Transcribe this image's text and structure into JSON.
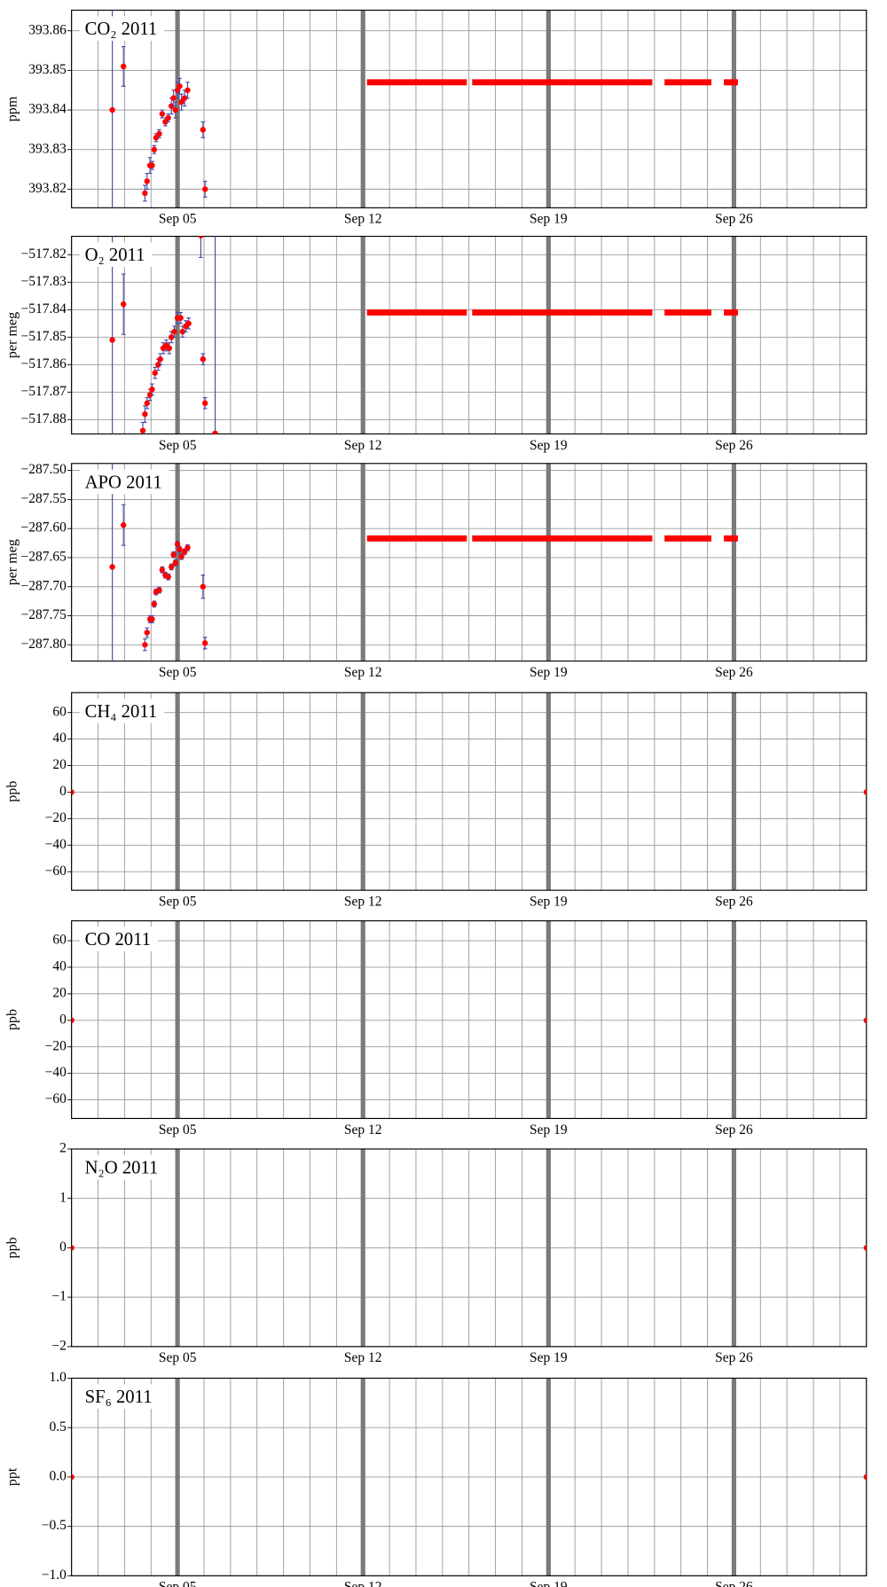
{
  "chart_data": [
    {
      "type": "scatter",
      "title": "CO₂ 2011",
      "ylabel": "ppm",
      "xlim": [
        1,
        31
      ],
      "ylim": [
        393.8153,
        393.8652
      ],
      "xticks": [
        {
          "value": 5,
          "label": "Sep 05"
        },
        {
          "value": 12,
          "label": "Sep 12"
        },
        {
          "value": 19,
          "label": "Sep 19"
        },
        {
          "value": 26,
          "label": "Sep 26"
        }
      ],
      "yticks": [
        393.82,
        393.83,
        393.84,
        393.85,
        393.86
      ],
      "grid": true,
      "series": [
        {
          "type": "scatter",
          "color": "#ff0000",
          "error_color": "#4a4aa8",
          "x": [
            2.54,
            2.96,
            3.77,
            3.85,
            3.96,
            4.04,
            4.12,
            4.19,
            4.31,
            4.42,
            4.54,
            4.65,
            4.77,
            4.85,
            4.92,
            5.0,
            5.08,
            5.15,
            5.27,
            5.38,
            5.96,
            6.04
          ],
          "values": [
            393.84,
            393.851,
            393.819,
            393.822,
            393.826,
            393.826,
            393.83,
            393.833,
            393.834,
            393.839,
            393.837,
            393.838,
            393.841,
            393.843,
            393.84,
            393.845,
            393.846,
            393.842,
            393.843,
            393.845,
            393.835,
            393.82
          ],
          "errors": [
            0.05,
            0.005,
            0.002,
            0.002,
            0.002,
            0.001,
            0.001,
            0.001,
            0.001,
            0.001,
            0.001,
            0.001,
            0.002,
            0.002,
            0.002,
            0.002,
            0.002,
            0.002,
            0.002,
            0.002,
            0.002,
            0.002
          ]
        },
        {
          "type": "line",
          "color": "#ff0000",
          "x": [
            12.15,
            15.92,
            16.0,
            16.12,
            22.92,
            23.1,
            23.38,
            25.15,
            25.4,
            25.62,
            26.15
          ],
          "values": [
            393.847,
            393.847,
            null,
            393.847,
            393.847,
            null,
            393.847,
            393.847,
            null,
            393.847,
            393.847
          ]
        }
      ]
    },
    {
      "type": "scatter",
      "title": "O₂ 2011",
      "ylabel": "per meg",
      "xlim": [
        1,
        31
      ],
      "ylim": [
        -517.8852,
        -517.8133
      ],
      "xticks": [
        {
          "value": 5,
          "label": "Sep 05"
        },
        {
          "value": 12,
          "label": "Sep 12"
        },
        {
          "value": 19,
          "label": "Sep 19"
        },
        {
          "value": 26,
          "label": "Sep 26"
        }
      ],
      "yticks": [
        {
          "value": -517.88,
          "label": "−517.88"
        },
        {
          "value": -517.87,
          "label": "−517.87"
        },
        {
          "value": -517.86,
          "label": "−517.86"
        },
        {
          "value": -517.85,
          "label": "−517.85"
        },
        {
          "value": -517.84,
          "label": "−517.84"
        },
        {
          "value": -517.83,
          "label": "−517.83"
        },
        {
          "value": -517.82,
          "label": "−517.82"
        }
      ],
      "grid": true,
      "series": [
        {
          "type": "scatter",
          "color": "#ff0000",
          "error_color": "#4a4aa8",
          "x": [
            2.54,
            2.96,
            3.69,
            3.77,
            3.85,
            3.96,
            4.04,
            4.15,
            4.27,
            4.35,
            4.46,
            4.58,
            4.69,
            4.77,
            4.88,
            5.0,
            5.12,
            5.19,
            5.31,
            5.42,
            5.88,
            5.96,
            6.04,
            6.42
          ],
          "values": [
            -517.851,
            -517.838,
            -517.884,
            -517.878,
            -517.874,
            -517.871,
            -517.869,
            -517.863,
            -517.86,
            -517.858,
            -517.854,
            -517.853,
            -517.854,
            -517.85,
            -517.848,
            -517.843,
            -517.843,
            -517.848,
            -517.846,
            -517.845,
            -517.813,
            -517.858,
            -517.874,
            -517.885
          ],
          "errors": [
            0.08,
            0.011,
            0.003,
            0.003,
            0.002,
            0.002,
            0.002,
            0.002,
            0.002,
            0.002,
            0.002,
            0.002,
            0.002,
            0.002,
            0.002,
            0.002,
            0.002,
            0.002,
            0.002,
            0.002,
            0.008,
            0.002,
            0.002,
            0.08
          ]
        },
        {
          "type": "line",
          "color": "#ff0000",
          "x": [
            12.15,
            15.92,
            16.0,
            16.12,
            22.92,
            23.1,
            23.38,
            25.15,
            25.4,
            25.62,
            26.15
          ],
          "values": [
            -517.841,
            -517.841,
            null,
            -517.841,
            -517.841,
            null,
            -517.841,
            -517.841,
            null,
            -517.841,
            -517.841
          ]
        }
      ]
    },
    {
      "type": "scatter",
      "title": "APO 2011",
      "ylabel": "per meg",
      "xlim": [
        1,
        31
      ],
      "ylim": [
        -287.828,
        -287.488
      ],
      "xticks": [
        {
          "value": 5,
          "label": "Sep 05"
        },
        {
          "value": 12,
          "label": "Sep 12"
        },
        {
          "value": 19,
          "label": "Sep 19"
        },
        {
          "value": 26,
          "label": "Sep 26"
        }
      ],
      "yticks": [
        {
          "value": -287.8,
          "label": "−287.80"
        },
        {
          "value": -287.75,
          "label": "−287.75"
        },
        {
          "value": -287.7,
          "label": "−287.70"
        },
        {
          "value": -287.65,
          "label": "−287.65"
        },
        {
          "value": -287.6,
          "label": "−287.60"
        },
        {
          "value": -287.55,
          "label": "−287.55"
        },
        {
          "value": -287.5,
          "label": "−287.50"
        }
      ],
      "grid": true,
      "series": [
        {
          "type": "scatter",
          "color": "#ff0000",
          "error_color": "#4a4aa8",
          "x": [
            2.54,
            2.96,
            3.77,
            3.85,
            3.96,
            4.04,
            4.12,
            4.19,
            4.31,
            4.42,
            4.54,
            4.65,
            4.77,
            4.85,
            4.92,
            5.0,
            5.08,
            5.15,
            5.27,
            5.38,
            5.96,
            6.04
          ],
          "values": [
            -287.666,
            -287.594,
            -287.8,
            -287.779,
            -287.756,
            -287.756,
            -287.73,
            -287.709,
            -287.706,
            -287.671,
            -287.68,
            -287.683,
            -287.666,
            -287.645,
            -287.659,
            -287.627,
            -287.636,
            -287.648,
            -287.64,
            -287.633,
            -287.7,
            -287.797
          ],
          "errors": [
            0.4,
            0.035,
            0.01,
            0.008,
            0.006,
            0.006,
            0.005,
            0.005,
            0.005,
            0.005,
            0.005,
            0.005,
            0.005,
            0.005,
            0.005,
            0.005,
            0.005,
            0.005,
            0.005,
            0.005,
            0.02,
            0.01
          ]
        },
        {
          "type": "line",
          "color": "#ff0000",
          "x": [
            12.15,
            15.92,
            16.0,
            16.12,
            22.92,
            23.1,
            23.38,
            25.15,
            25.4,
            25.62,
            26.15
          ],
          "values": [
            -287.617,
            -287.617,
            null,
            -287.617,
            -287.617,
            null,
            -287.617,
            -287.617,
            null,
            -287.617,
            -287.617
          ]
        }
      ]
    },
    {
      "type": "scatter",
      "title": "CH₄ 2011",
      "ylabel": "ppb",
      "xlim": [
        1,
        31
      ],
      "ylim": [
        -74,
        75
      ],
      "xticks": [
        {
          "value": 5,
          "label": "Sep 05"
        },
        {
          "value": 12,
          "label": "Sep 12"
        },
        {
          "value": 19,
          "label": "Sep 19"
        },
        {
          "value": 26,
          "label": "Sep 26"
        }
      ],
      "yticks": [
        {
          "value": -60,
          "label": "−60"
        },
        {
          "value": -40,
          "label": "−40"
        },
        {
          "value": -20,
          "label": "−20"
        },
        0,
        20,
        40,
        60
      ],
      "grid": true,
      "series": [
        {
          "type": "scatter",
          "color": "#ff0000",
          "x": [
            1,
            31
          ],
          "values": [
            0,
            0
          ]
        }
      ]
    },
    {
      "type": "scatter",
      "title": "CO 2011",
      "ylabel": "ppb",
      "xlim": [
        1,
        31
      ],
      "ylim": [
        -74,
        75
      ],
      "xticks": [
        {
          "value": 5,
          "label": "Sep 05"
        },
        {
          "value": 12,
          "label": "Sep 12"
        },
        {
          "value": 19,
          "label": "Sep 19"
        },
        {
          "value": 26,
          "label": "Sep 26"
        }
      ],
      "yticks": [
        {
          "value": -60,
          "label": "−60"
        },
        {
          "value": -40,
          "label": "−40"
        },
        {
          "value": -20,
          "label": "−20"
        },
        0,
        20,
        40,
        60
      ],
      "grid": true,
      "series": [
        {
          "type": "scatter",
          "color": "#ff0000",
          "x": [
            1,
            31
          ],
          "values": [
            0,
            0
          ]
        }
      ]
    },
    {
      "type": "scatter",
      "title": "N₂O 2011",
      "ylabel": "ppb",
      "xlim": [
        1,
        31
      ],
      "ylim": [
        -2,
        2
      ],
      "xticks": [
        {
          "value": 5,
          "label": "Sep 05"
        },
        {
          "value": 12,
          "label": "Sep 12"
        },
        {
          "value": 19,
          "label": "Sep 19"
        },
        {
          "value": 26,
          "label": "Sep 26"
        }
      ],
      "yticks": [
        {
          "value": -2,
          "label": "−2"
        },
        {
          "value": -1,
          "label": "−1"
        },
        0,
        1,
        2
      ],
      "grid": true,
      "series": [
        {
          "type": "scatter",
          "color": "#ff0000",
          "x": [
            1,
            31
          ],
          "values": [
            0,
            0
          ]
        }
      ]
    },
    {
      "type": "scatter",
      "title": "SF₆ 2011",
      "ylabel": "ppt",
      "xlim": [
        1,
        31
      ],
      "ylim": [
        -1,
        1
      ],
      "xticks": [
        {
          "value": 5,
          "label": "Sep 05"
        },
        {
          "value": 12,
          "label": "Sep 12"
        },
        {
          "value": 19,
          "label": "Sep 19"
        },
        {
          "value": 26,
          "label": "Sep 26"
        }
      ],
      "yticks": [
        {
          "value": -1,
          "label": "−1.0"
        },
        {
          "value": -0.5,
          "label": "−0.5"
        },
        {
          "value": 0,
          "label": "0.0"
        },
        {
          "value": 0.5,
          "label": "0.5"
        },
        {
          "value": 1,
          "label": "1.0"
        }
      ],
      "grid": true,
      "series": [
        {
          "type": "scatter",
          "color": "#ff0000",
          "x": [
            1,
            31
          ],
          "values": [
            0,
            0
          ]
        }
      ]
    }
  ]
}
